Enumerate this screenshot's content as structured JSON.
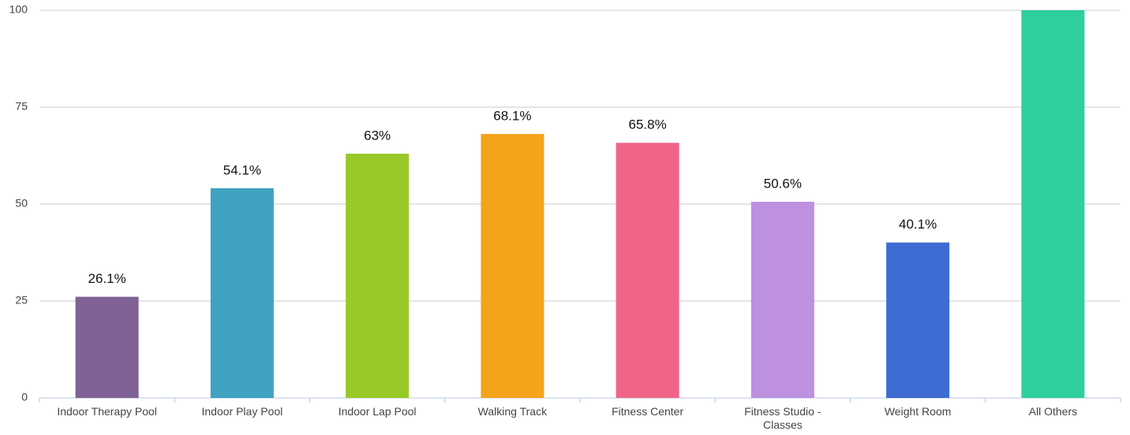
{
  "chart_data": {
    "type": "bar",
    "categories": [
      "Indoor Therapy Pool",
      "Indoor Play Pool",
      "Indoor Lap Pool",
      "Walking Track",
      "Fitness Center",
      "Fitness Studio - Classes",
      "Weight Room",
      "All Others"
    ],
    "values": [
      26.1,
      54.1,
      63,
      68.1,
      65.8,
      50.6,
      40.1,
      100
    ],
    "value_labels": [
      "26.1%",
      "54.1%",
      "63%",
      "68.1%",
      "65.8%",
      "50.6%",
      "40.1%",
      null
    ],
    "colors": [
      "#7f6195",
      "#3fa2c1",
      "#98c928",
      "#f4a41b",
      "#f06487",
      "#bd90e0",
      "#3d6dd2",
      "#2ecf9e"
    ],
    "ylim": [
      0,
      100
    ],
    "yticks": [
      0,
      25,
      50,
      75,
      100
    ],
    "grid": true
  }
}
